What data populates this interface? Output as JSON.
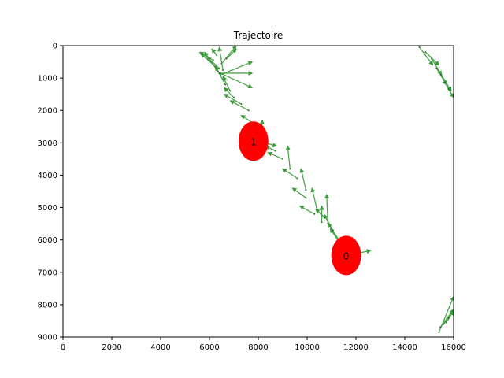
{
  "chart_data": {
    "type": "scatter",
    "title": "Trajectoire",
    "xlabel": "",
    "ylabel": "",
    "xlim": [
      0,
      16000
    ],
    "ylim": [
      9000,
      0
    ],
    "y_inverted": true,
    "grid": false,
    "x_ticks": [
      0,
      2000,
      4000,
      6000,
      8000,
      10000,
      12000,
      14000,
      16000
    ],
    "y_ticks": [
      0,
      1000,
      2000,
      3000,
      4000,
      5000,
      6000,
      7000,
      8000,
      9000
    ],
    "points": [
      {
        "label": "0",
        "x": 11600,
        "y": 6480
      },
      {
        "label": "1",
        "x": 7800,
        "y": 2950
      }
    ],
    "vectors": [
      {
        "x": 11600,
        "y": 6480,
        "dx": 1000,
        "dy": -150
      },
      {
        "x": 11500,
        "y": 6300,
        "dx": -550,
        "dy": -650
      },
      {
        "x": 11300,
        "y": 6000,
        "dx": -450,
        "dy": -520
      },
      {
        "x": 11050,
        "y": 5700,
        "dx": -350,
        "dy": -480
      },
      {
        "x": 10850,
        "y": 5500,
        "dx": -50,
        "dy": -900
      },
      {
        "x": 10700,
        "y": 5300,
        "dx": -350,
        "dy": -250
      },
      {
        "x": 10600,
        "y": 5450,
        "dx": 0,
        "dy": -500
      },
      {
        "x": 10400,
        "y": 5050,
        "dx": -200,
        "dy": -650
      },
      {
        "x": 10300,
        "y": 5200,
        "dx": -600,
        "dy": -250
      },
      {
        "x": 9950,
        "y": 4700,
        "dx": -550,
        "dy": -300
      },
      {
        "x": 9950,
        "y": 4450,
        "dx": -200,
        "dy": -650
      },
      {
        "x": 9600,
        "y": 4100,
        "dx": -600,
        "dy": -300
      },
      {
        "x": 9300,
        "y": 3800,
        "dx": -100,
        "dy": -700
      },
      {
        "x": 9000,
        "y": 3500,
        "dx": -600,
        "dy": -200
      },
      {
        "x": 8700,
        "y": 3250,
        "dx": -400,
        "dy": -150
      },
      {
        "x": 8300,
        "y": 3100,
        "dx": -600,
        "dy": -200
      },
      {
        "x": 8050,
        "y": 2950,
        "dx": 700,
        "dy": 150
      },
      {
        "x": 8100,
        "y": 2800,
        "dx": 70,
        "dy": -500
      },
      {
        "x": 7800,
        "y": 2400,
        "dx": -500,
        "dy": -250
      },
      {
        "x": 7600,
        "y": 2000,
        "dx": -750,
        "dy": -300
      },
      {
        "x": 7300,
        "y": 1800,
        "dx": -700,
        "dy": -300
      },
      {
        "x": 7000,
        "y": 1600,
        "dx": -400,
        "dy": -300
      },
      {
        "x": 6850,
        "y": 1400,
        "dx": -300,
        "dy": -450
      },
      {
        "x": 6650,
        "y": 1200,
        "dx": -400,
        "dy": -550
      },
      {
        "x": 6450,
        "y": 900,
        "dx": 1300,
        "dy": -400
      },
      {
        "x": 6400,
        "y": 850,
        "dx": 1350,
        "dy": 0
      },
      {
        "x": 6450,
        "y": 850,
        "dx": 1300,
        "dy": 450
      },
      {
        "x": 6350,
        "y": 800,
        "dx": -550,
        "dy": -600
      },
      {
        "x": 6250,
        "y": 650,
        "dx": -600,
        "dy": -400
      },
      {
        "x": 6150,
        "y": 450,
        "dx": -550,
        "dy": -250
      },
      {
        "x": 6300,
        "y": 300,
        "dx": -200,
        "dy": -200
      },
      {
        "x": 6400,
        "y": 700,
        "dx": -500,
        "dy": -350
      },
      {
        "x": 6500,
        "y": 550,
        "dx": 600,
        "dy": -550
      },
      {
        "x": 6700,
        "y": 400,
        "dx": 400,
        "dy": -300
      },
      {
        "x": 6550,
        "y": 750,
        "dx": -150,
        "dy": -700
      },
      {
        "x": 14600,
        "y": 50,
        "dx": 550,
        "dy": 550
      },
      {
        "x": 14850,
        "y": 200,
        "dx": 550,
        "dy": 400
      },
      {
        "x": 15100,
        "y": 400,
        "dx": 400,
        "dy": 500
      },
      {
        "x": 15300,
        "y": 700,
        "dx": 400,
        "dy": 500
      },
      {
        "x": 15500,
        "y": 900,
        "dx": 400,
        "dy": 500
      },
      {
        "x": 15650,
        "y": 1150,
        "dx": 350,
        "dy": 450
      },
      {
        "x": 15800,
        "y": 1350,
        "dx": 200,
        "dy": 250
      },
      {
        "x": 15400,
        "y": 8850,
        "dx": 600,
        "dy": -1100
      },
      {
        "x": 15450,
        "y": 8700,
        "dx": 550,
        "dy": -550
      },
      {
        "x": 15600,
        "y": 8600,
        "dx": 400,
        "dy": -400
      },
      {
        "x": 15700,
        "y": 8550,
        "dx": 300,
        "dy": -350
      },
      {
        "x": 15800,
        "y": 8400,
        "dx": 200,
        "dy": -250
      }
    ],
    "colors": {
      "vector": "#3c9c3c",
      "point": "#ff0000",
      "axis": "#000000"
    }
  }
}
